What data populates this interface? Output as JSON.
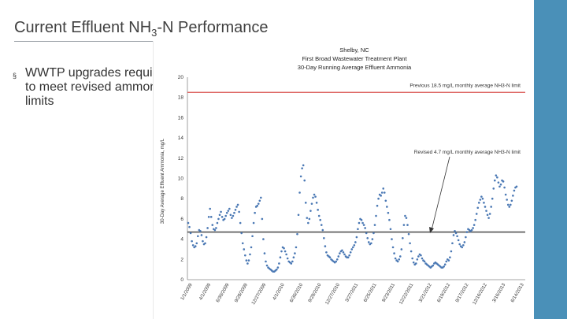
{
  "slide": {
    "title_main": "Current Effluent NH",
    "title_sub": "3",
    "title_rest": "-N Performance",
    "bullet_marker": "§",
    "bullet_text": "WWTP upgrades required to meet revised ammonia limits"
  },
  "colors": {
    "accent_bar": "#4a90b8",
    "data_series": "#4a78b4",
    "old_limit": "#d9534f",
    "new_limit": "#555555"
  },
  "chart_data": {
    "type": "scatter",
    "title_lines": [
      "Shelby, NC",
      "First Broad Wastewater Treatment Plant",
      "30-Day Running Average Effluent Ammonia"
    ],
    "ylabel": "30-Day Average Effluent Ammonia, mg/L",
    "xlabel": "",
    "ylim": [
      0,
      20
    ],
    "yticks": [
      0,
      2,
      4,
      6,
      8,
      10,
      12,
      14,
      16,
      18,
      20
    ],
    "xticks": [
      "1/1/2009",
      "4/1/2009",
      "6/30/2009",
      "9/28/2009",
      "12/27/2009",
      "4/1/2010",
      "6/30/2010",
      "9/28/2010",
      "12/27/2010",
      "3/27/2011",
      "6/25/2011",
      "9/23/2011",
      "12/22/2011",
      "3/21/2012",
      "6/19/2012",
      "9/17/2012",
      "12/16/2012",
      "3/16/2013",
      "6/14/2013"
    ],
    "reference_lines": [
      {
        "value": 18.5,
        "label": "Previous 18.5 mg/L monthly average NH3-N limit"
      },
      {
        "value": 4.7,
        "label": "Revised 4.7 mg/L monthly average NH3-N limit"
      }
    ],
    "grid": false,
    "series": [
      {
        "values": [
          5.6,
          5.2,
          4.6,
          3.8,
          3.4,
          3.2,
          3.3,
          3.6,
          4.3,
          4.9,
          4.8,
          4.4,
          3.8,
          3.5,
          3.6,
          4.2,
          5.1,
          6.2,
          7.0,
          6.2,
          5.4,
          5.0,
          4.9,
          5.1,
          5.6,
          6.0,
          6.4,
          6.7,
          6.2,
          5.9,
          6.0,
          6.3,
          6.6,
          6.8,
          7.0,
          6.4,
          6.1,
          6.3,
          6.6,
          6.9,
          7.2,
          7.4,
          6.7,
          5.6,
          4.6,
          3.6,
          3.0,
          2.4,
          1.9,
          1.6,
          1.9,
          2.5,
          3.2,
          4.3,
          5.6,
          6.6,
          7.2,
          7.3,
          7.5,
          7.8,
          8.1,
          6.0,
          4.0,
          2.6,
          1.8,
          1.4,
          1.2,
          1.1,
          1.0,
          0.9,
          0.8,
          0.8,
          0.9,
          1.0,
          1.2,
          1.6,
          2.2,
          2.8,
          3.2,
          3.1,
          2.8,
          2.5,
          2.1,
          1.8,
          1.7,
          1.6,
          1.8,
          2.2,
          2.6,
          3.2,
          4.5,
          6.4,
          8.6,
          10.2,
          11.0,
          11.3,
          9.8,
          7.6,
          6.1,
          5.6,
          6.0,
          6.8,
          7.5,
          8.1,
          8.4,
          8.2,
          7.6,
          6.9,
          6.3,
          5.9,
          5.4,
          4.9,
          4.1,
          3.3,
          2.7,
          2.4,
          2.3,
          2.2,
          2.0,
          1.9,
          1.8,
          1.7,
          1.8,
          2.0,
          2.3,
          2.6,
          2.8,
          2.9,
          2.7,
          2.5,
          2.3,
          2.2,
          2.2,
          2.4,
          2.7,
          3.0,
          3.2,
          3.4,
          3.7,
          4.2,
          5.0,
          5.6,
          6.0,
          5.9,
          5.6,
          5.4,
          5.1,
          4.6,
          4.1,
          3.7,
          3.5,
          3.6,
          4.0,
          4.6,
          5.4,
          6.3,
          7.3,
          8.0,
          8.4,
          8.3,
          8.6,
          9.0,
          8.6,
          7.8,
          7.2,
          6.6,
          5.9,
          5.0,
          4.0,
          3.2,
          2.6,
          2.1,
          1.9,
          1.8,
          2.0,
          2.3,
          3.0,
          4.1,
          5.4,
          6.3,
          6.1,
          5.4,
          4.5,
          3.6,
          2.8,
          2.1,
          1.7,
          1.5,
          1.6,
          2.0,
          2.3,
          2.5,
          2.4,
          2.1,
          1.9,
          1.8,
          1.6,
          1.5,
          1.4,
          1.3,
          1.2,
          1.3,
          1.4,
          1.6,
          1.7,
          1.6,
          1.5,
          1.4,
          1.3,
          1.2,
          1.2,
          1.3,
          1.5,
          1.8,
          2.0,
          1.9,
          2.2,
          2.8,
          3.6,
          4.4,
          4.8,
          4.6,
          4.3,
          3.9,
          3.5,
          3.3,
          3.2,
          3.4,
          3.7,
          4.2,
          4.7,
          5.0,
          4.9,
          4.8,
          4.9,
          5.1,
          5.4,
          5.9,
          6.5,
          7.1,
          7.6,
          7.9,
          8.2,
          8.0,
          7.6,
          7.2,
          6.8,
          6.4,
          6.1,
          6.5,
          7.2,
          8.0,
          9.0,
          9.8,
          10.3,
          10.1,
          9.6,
          9.2,
          9.4,
          9.8,
          9.7,
          9.1,
          8.4,
          7.9,
          7.4,
          7.2,
          7.4,
          7.8,
          8.3,
          8.8,
          9.1,
          9.2
        ]
      }
    ]
  }
}
